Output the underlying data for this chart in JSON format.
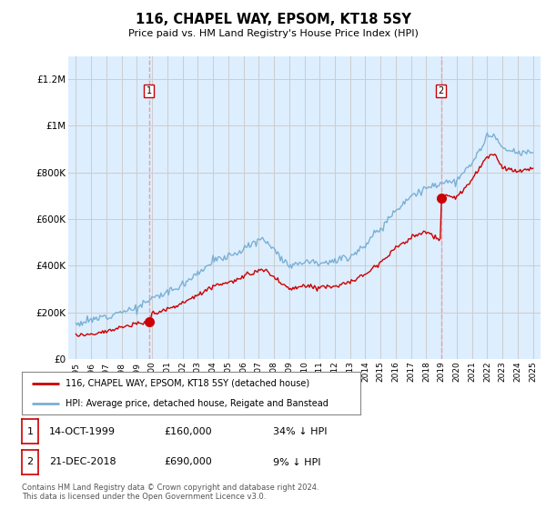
{
  "title": "116, CHAPEL WAY, EPSOM, KT18 5SY",
  "subtitle": "Price paid vs. HM Land Registry's House Price Index (HPI)",
  "legend_line1": "116, CHAPEL WAY, EPSOM, KT18 5SY (detached house)",
  "legend_line2": "HPI: Average price, detached house, Reigate and Banstead",
  "footnote": "Contains HM Land Registry data © Crown copyright and database right 2024.\nThis data is licensed under the Open Government Licence v3.0.",
  "sale1_date": "14-OCT-1999",
  "sale1_price": "£160,000",
  "sale1_hpi": "34% ↓ HPI",
  "sale2_date": "21-DEC-2018",
  "sale2_price": "£690,000",
  "sale2_hpi": "9% ↓ HPI",
  "ylim": [
    0,
    1300000
  ],
  "yticks": [
    0,
    200000,
    400000,
    600000,
    800000,
    1000000,
    1200000
  ],
  "ytick_labels": [
    "£0",
    "£200K",
    "£400K",
    "£600K",
    "£800K",
    "£1M",
    "£1.2M"
  ],
  "sale_color": "#cc0000",
  "hpi_color": "#7ab0d4",
  "vline_color": "#e8a0a0",
  "plot_bg_color": "#ddeeff",
  "background_color": "#ffffff",
  "grid_color": "#cccccc",
  "sale1_x": 1999.79,
  "sale1_y": 160000,
  "sale2_x": 2018.97,
  "sale2_y": 690000,
  "sale2_y_before": 510000,
  "xtick_start": 1995,
  "xtick_end": 2025
}
